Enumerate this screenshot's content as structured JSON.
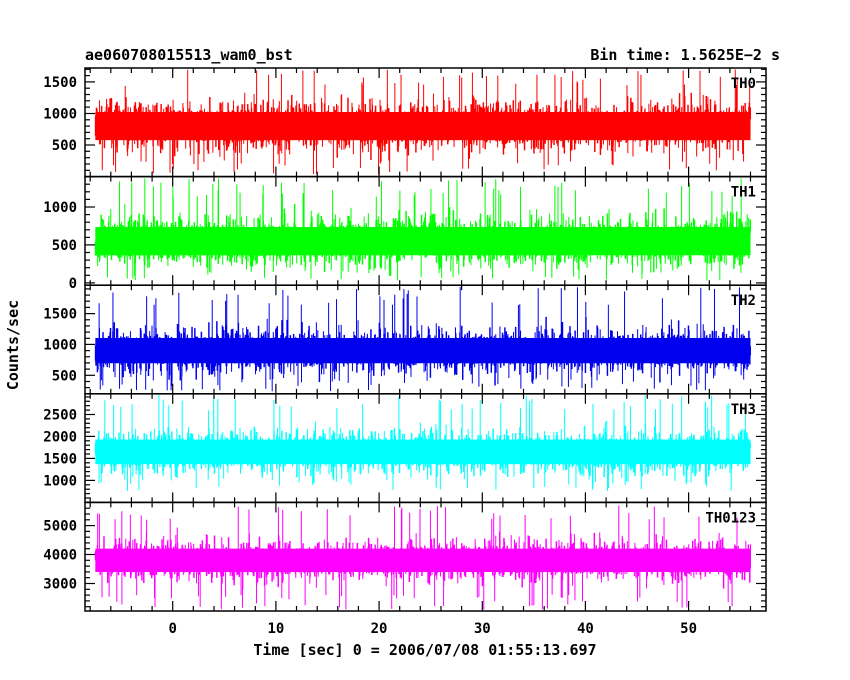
{
  "header": {
    "left_title": "ae060708015513_wam0_bst",
    "right_title": "Bin time: 1.5625E−2 s"
  },
  "chart_data": {
    "type": "line",
    "title": "ae060708015513_wam0_bst",
    "subtitle": "Bin time: 1.5625E−2 s",
    "xlabel": "Time [sec] 0 = 2006/07/08 01:55:13.697",
    "ylabel": "Counts/sec",
    "xlim": [
      -8.5,
      57.5
    ],
    "x_ticks": [
      0,
      10,
      20,
      30,
      40,
      50
    ],
    "x_range_data": [
      -7.5,
      56
    ],
    "bin_time": 0.015625,
    "panels": [
      {
        "name": "TH0",
        "color": "#ff0000",
        "ylim": [
          0,
          1720
        ],
        "y_ticks": [
          500,
          1000,
          1500
        ],
        "mean": 800,
        "spread": 360,
        "min": 30,
        "max": 1700
      },
      {
        "name": "TH1",
        "color": "#00ff00",
        "ylim": [
          -30,
          1400
        ],
        "y_ticks": [
          0,
          500,
          1000
        ],
        "mean": 550,
        "spread": 300,
        "min": 30,
        "max": 1380
      },
      {
        "name": "TH2",
        "color": "#0000ee",
        "ylim": [
          200,
          1960
        ],
        "y_ticks": [
          500,
          1000,
          1500
        ],
        "mean": 900,
        "spread": 330,
        "min": 240,
        "max": 1940
      },
      {
        "name": "TH3",
        "color": "#00ffff",
        "ylim": [
          500,
          2970
        ],
        "y_ticks": [
          1000,
          1500,
          2000,
          2500
        ],
        "mean": 1650,
        "spread": 450,
        "min": 750,
        "max": 2950
      },
      {
        "name": "TH0123",
        "color": "#ff00ff",
        "ylim": [
          2050,
          5800
        ],
        "y_ticks": [
          3000,
          4000,
          5000
        ],
        "mean": 3800,
        "spread": 650,
        "min": 2100,
        "max": 5750
      }
    ]
  }
}
